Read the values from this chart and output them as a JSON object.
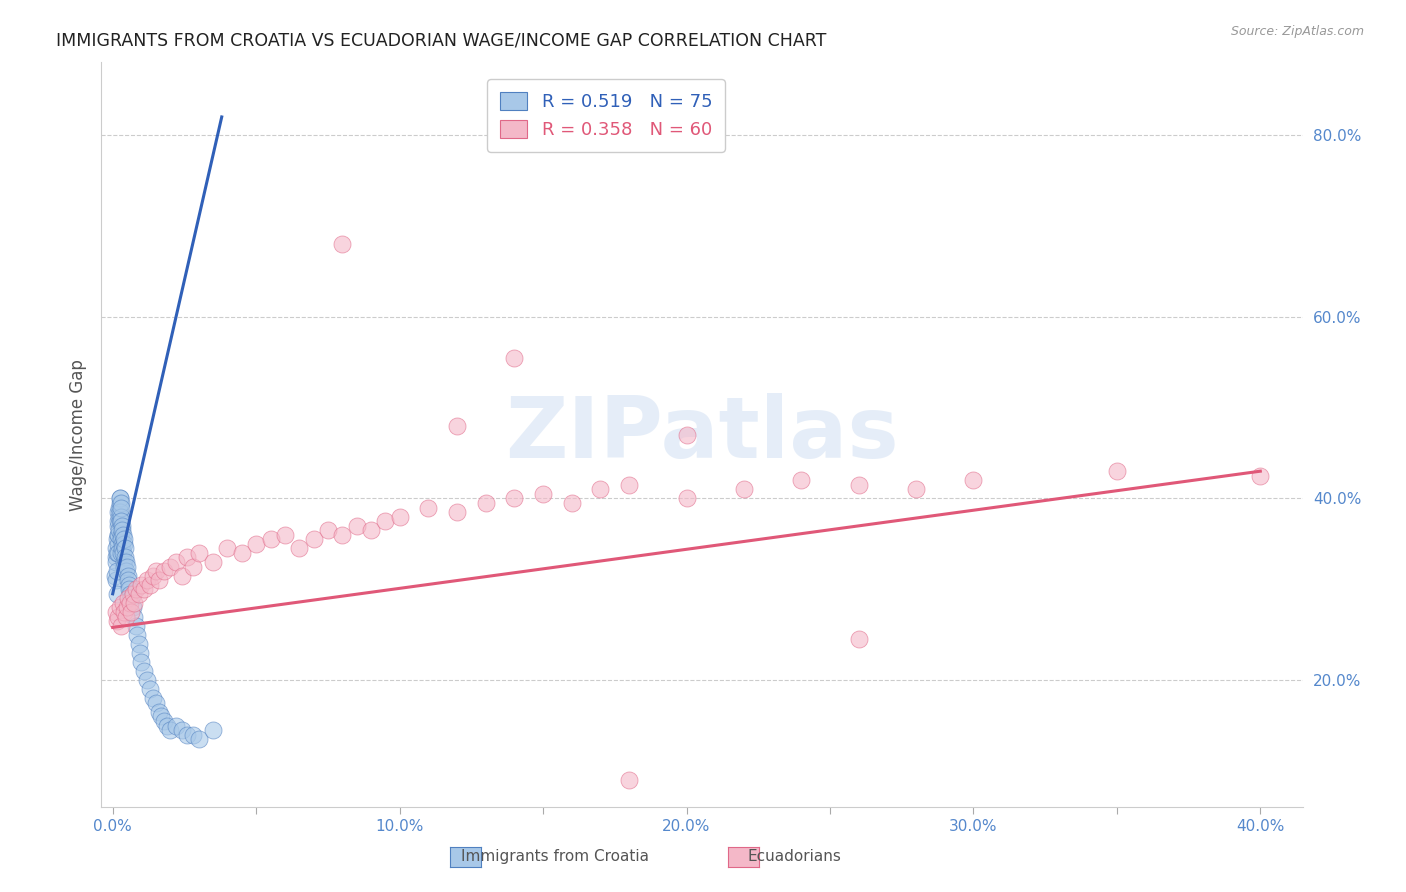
{
  "title": "IMMIGRANTS FROM CROATIA VS ECUADORIAN WAGE/INCOME GAP CORRELATION CHART",
  "source": "Source: ZipAtlas.com",
  "ylabel": "Wage/Income Gap",
  "right_yticks": [
    0.2,
    0.4,
    0.6,
    0.8
  ],
  "right_yticklabels": [
    "20.0%",
    "40.0%",
    "60.0%",
    "80.0%"
  ],
  "xticks": [
    0.0,
    0.05,
    0.1,
    0.15,
    0.2,
    0.25,
    0.3,
    0.35,
    0.4
  ],
  "xticklabels": [
    "0.0%",
    "",
    "10.0%",
    "",
    "20.0%",
    "",
    "30.0%",
    "",
    "40.0%"
  ],
  "xlim": [
    -0.004,
    0.415
  ],
  "ylim": [
    0.06,
    0.88
  ],
  "blue_color": "#a8c8e8",
  "pink_color": "#f4b8c8",
  "blue_edge_color": "#5080c0",
  "pink_edge_color": "#e06888",
  "blue_line_color": "#3060b8",
  "pink_line_color": "#e05878",
  "title_color": "#222222",
  "axis_tick_color": "#5588cc",
  "grid_color": "#cccccc",
  "watermark_text": "ZIPatlas",
  "legend_entries": [
    {
      "label_r": "R = 0.519",
      "label_n": "N = 75",
      "color": "#7ab3e8"
    },
    {
      "label_r": "R = 0.358",
      "label_n": "N = 60",
      "color": "#f4a0b8"
    }
  ],
  "blue_scatter_x": [
    0.0008,
    0.001,
    0.001,
    0.0012,
    0.0012,
    0.0014,
    0.0015,
    0.0015,
    0.0016,
    0.0018,
    0.0018,
    0.0018,
    0.002,
    0.002,
    0.002,
    0.002,
    0.0022,
    0.0022,
    0.0022,
    0.0024,
    0.0024,
    0.0024,
    0.0026,
    0.0026,
    0.0028,
    0.0028,
    0.0028,
    0.003,
    0.003,
    0.003,
    0.003,
    0.0032,
    0.0032,
    0.0034,
    0.0034,
    0.0036,
    0.0036,
    0.0038,
    0.0038,
    0.004,
    0.004,
    0.0042,
    0.0044,
    0.0046,
    0.0048,
    0.005,
    0.0052,
    0.0054,
    0.0056,
    0.0058,
    0.006,
    0.0065,
    0.007,
    0.0075,
    0.008,
    0.0085,
    0.009,
    0.0095,
    0.01,
    0.011,
    0.012,
    0.013,
    0.014,
    0.015,
    0.016,
    0.017,
    0.018,
    0.019,
    0.02,
    0.022,
    0.024,
    0.026,
    0.028,
    0.03,
    0.035
  ],
  "blue_scatter_y": [
    0.315,
    0.335,
    0.345,
    0.33,
    0.31,
    0.295,
    0.34,
    0.355,
    0.32,
    0.36,
    0.37,
    0.35,
    0.375,
    0.385,
    0.36,
    0.34,
    0.39,
    0.38,
    0.365,
    0.395,
    0.4,
    0.375,
    0.4,
    0.385,
    0.395,
    0.38,
    0.36,
    0.39,
    0.375,
    0.355,
    0.34,
    0.37,
    0.35,
    0.365,
    0.345,
    0.36,
    0.34,
    0.35,
    0.33,
    0.355,
    0.325,
    0.345,
    0.335,
    0.33,
    0.32,
    0.325,
    0.315,
    0.31,
    0.305,
    0.3,
    0.295,
    0.29,
    0.28,
    0.27,
    0.26,
    0.25,
    0.24,
    0.23,
    0.22,
    0.21,
    0.2,
    0.19,
    0.18,
    0.175,
    0.165,
    0.16,
    0.155,
    0.15,
    0.145,
    0.15,
    0.145,
    0.14,
    0.14,
    0.135,
    0.145
  ],
  "pink_scatter_x": [
    0.001,
    0.0015,
    0.002,
    0.0025,
    0.003,
    0.0035,
    0.004,
    0.0045,
    0.005,
    0.0055,
    0.006,
    0.0065,
    0.007,
    0.0075,
    0.008,
    0.009,
    0.01,
    0.011,
    0.012,
    0.013,
    0.014,
    0.015,
    0.016,
    0.018,
    0.02,
    0.022,
    0.024,
    0.026,
    0.028,
    0.03,
    0.035,
    0.04,
    0.045,
    0.05,
    0.055,
    0.06,
    0.065,
    0.07,
    0.075,
    0.08,
    0.085,
    0.09,
    0.095,
    0.1,
    0.11,
    0.12,
    0.13,
    0.14,
    0.15,
    0.16,
    0.17,
    0.18,
    0.2,
    0.22,
    0.24,
    0.26,
    0.28,
    0.3,
    0.35,
    0.4
  ],
  "pink_scatter_y": [
    0.275,
    0.265,
    0.27,
    0.28,
    0.26,
    0.285,
    0.275,
    0.27,
    0.28,
    0.29,
    0.285,
    0.275,
    0.295,
    0.285,
    0.3,
    0.295,
    0.305,
    0.3,
    0.31,
    0.305,
    0.315,
    0.32,
    0.31,
    0.32,
    0.325,
    0.33,
    0.315,
    0.335,
    0.325,
    0.34,
    0.33,
    0.345,
    0.34,
    0.35,
    0.355,
    0.36,
    0.345,
    0.355,
    0.365,
    0.36,
    0.37,
    0.365,
    0.375,
    0.38,
    0.39,
    0.385,
    0.395,
    0.4,
    0.405,
    0.395,
    0.41,
    0.415,
    0.4,
    0.41,
    0.42,
    0.415,
    0.41,
    0.42,
    0.43,
    0.425
  ],
  "pink_outliers_x": [
    0.08,
    0.14,
    0.2,
    0.26,
    0.12,
    0.18
  ],
  "pink_outliers_y": [
    0.68,
    0.555,
    0.47,
    0.245,
    0.48,
    0.09
  ],
  "blue_regline_x": [
    0.0,
    0.038
  ],
  "blue_regline_y": [
    0.295,
    0.82
  ],
  "pink_regline_x": [
    0.0,
    0.4
  ],
  "pink_regline_y": [
    0.258,
    0.43
  ]
}
